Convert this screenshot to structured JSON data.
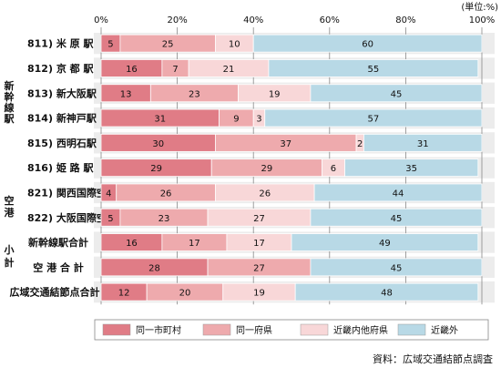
{
  "chart_data": {
    "type": "bar",
    "orientation": "horizontal",
    "stacked": true,
    "unit_label": "(単位:%)",
    "xlim": [
      0,
      100
    ],
    "x_ticks": [
      "0%",
      "20%",
      "40%",
      "60%",
      "80%",
      "100%"
    ],
    "categories": [
      "811) 米 原 駅",
      "812) 京 都 駅",
      "813) 新大阪駅",
      "814) 新神戸駅",
      "815) 西明石駅",
      "816) 姫 路 駅",
      "821) 関西国際空港",
      "822) 大阪国際空港",
      "新幹線駅合計",
      "空 港 合 計",
      "広域交通結節点合計"
    ],
    "series": [
      {
        "name": "同一市町村",
        "color": "#e07c86",
        "values": [
          5,
          16,
          13,
          31,
          30,
          29,
          4,
          5,
          16,
          28,
          12
        ]
      },
      {
        "name": "同一府県",
        "color": "#eeaaad",
        "values": [
          25,
          7,
          23,
          9,
          37,
          29,
          26,
          23,
          17,
          27,
          20
        ]
      },
      {
        "name": "近畿内他府県",
        "color": "#f8d7d8",
        "values": [
          10,
          21,
          19,
          3,
          2,
          6,
          26,
          27,
          17,
          0,
          19
        ]
      },
      {
        "name": "近畿外",
        "color": "#b8d9e6",
        "values": [
          60,
          55,
          45,
          57,
          31,
          35,
          44,
          45,
          49,
          45,
          48
        ]
      }
    ],
    "groups": [
      "新幹線駅",
      "空港",
      "小計"
    ],
    "legend_position": "bottom",
    "grid": true
  },
  "source": "資料：広域交通結節点調査"
}
